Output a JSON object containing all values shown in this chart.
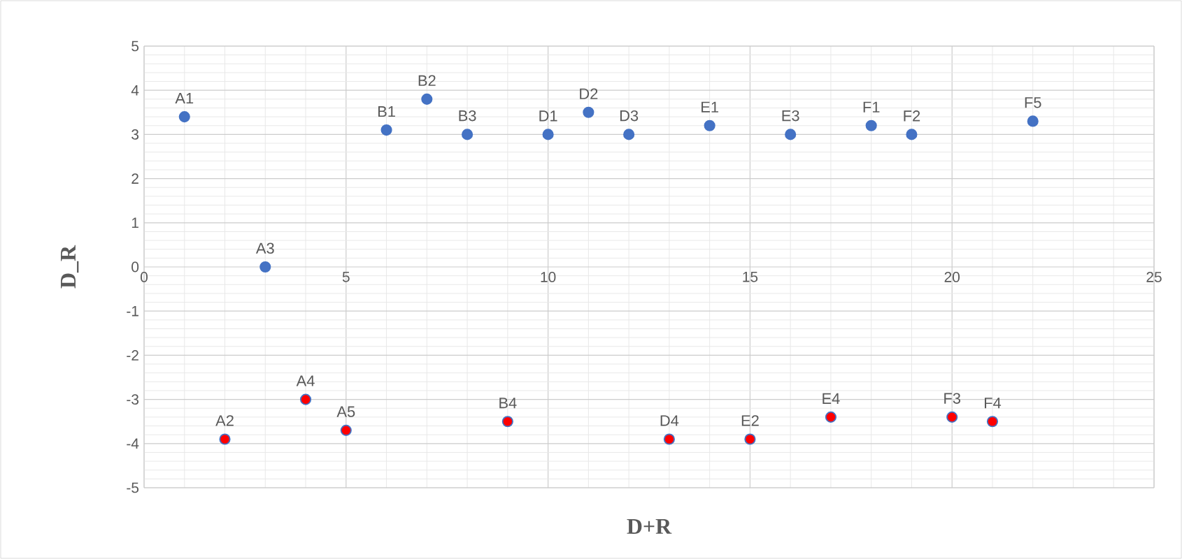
{
  "chart_data": {
    "type": "scatter",
    "xlabel": "D+R",
    "ylabel": "D_R",
    "xlim": [
      0,
      25
    ],
    "ylim": [
      -5,
      5
    ],
    "xticks": [
      0,
      5,
      10,
      15,
      20,
      25
    ],
    "yticks": [
      -5,
      -4,
      -3,
      -2,
      -1,
      0,
      1,
      2,
      3,
      4,
      5
    ],
    "grid": true,
    "marker": "circle",
    "series": [
      {
        "color": "#4472c4",
        "x": [
          1,
          3,
          6,
          7,
          8,
          10,
          11,
          12,
          14,
          16,
          18,
          19,
          22
        ],
        "values": [
          3.4,
          0,
          3.1,
          3.8,
          3.0,
          3.0,
          3.5,
          3.0,
          3.2,
          3.0,
          3.2,
          3.0,
          3.3
        ]
      },
      {
        "color": "#ff0000",
        "x": [
          2,
          4,
          5,
          9,
          13,
          15,
          17,
          20,
          21
        ],
        "values": [
          -3.9,
          -3.0,
          -3.7,
          -3.5,
          -3.9,
          -3.9,
          -3.4,
          -3.4,
          -3.5
        ]
      }
    ],
    "annotations": [
      {
        "text": "A1",
        "x": 1,
        "y": 3.4
      },
      {
        "text": "A3",
        "x": 3,
        "y": 0
      },
      {
        "text": "B1",
        "x": 6,
        "y": 3.1
      },
      {
        "text": "B2",
        "x": 7,
        "y": 3.8
      },
      {
        "text": "B3",
        "x": 8,
        "y": 3.0
      },
      {
        "text": "D1",
        "x": 10,
        "y": 3.0
      },
      {
        "text": "D2",
        "x": 11,
        "y": 3.5
      },
      {
        "text": "D3",
        "x": 12,
        "y": 3.0
      },
      {
        "text": "E1",
        "x": 14,
        "y": 3.2
      },
      {
        "text": "E3",
        "x": 16,
        "y": 3.0
      },
      {
        "text": "F1",
        "x": 18,
        "y": 3.2
      },
      {
        "text": "F2",
        "x": 19,
        "y": 3.0
      },
      {
        "text": "F5",
        "x": 22,
        "y": 3.3
      },
      {
        "text": "A2",
        "x": 2,
        "y": -3.9
      },
      {
        "text": "A4",
        "x": 4,
        "y": -3.0
      },
      {
        "text": "A5",
        "x": 5,
        "y": -3.7
      },
      {
        "text": "B4",
        "x": 9,
        "y": -3.5
      },
      {
        "text": "D4",
        "x": 13,
        "y": -3.9
      },
      {
        "text": "E2",
        "x": 15,
        "y": -3.9
      },
      {
        "text": "E4",
        "x": 17,
        "y": -3.4
      },
      {
        "text": "F3",
        "x": 20,
        "y": -3.4
      },
      {
        "text": "F4",
        "x": 21,
        "y": -3.5
      }
    ]
  }
}
